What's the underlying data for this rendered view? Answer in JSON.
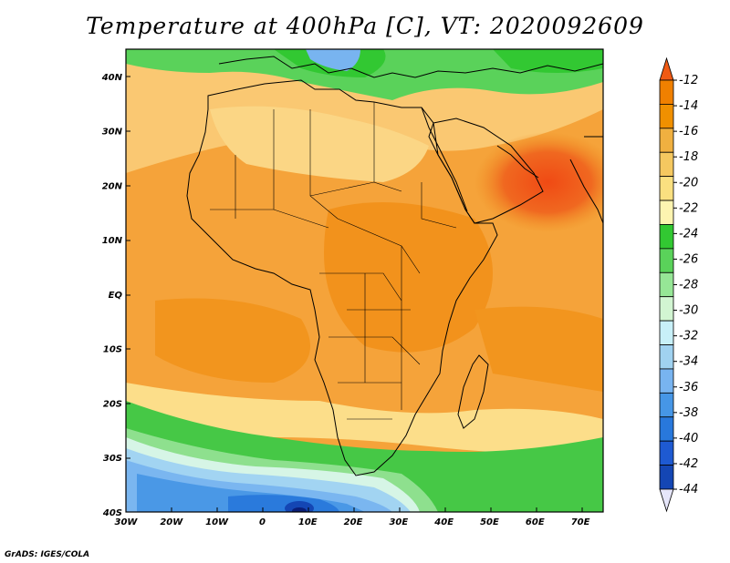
{
  "title": "Temperature at 400hPa [C], VT: 2020092609",
  "credit": "GrADS: IGES/COLA",
  "map": {
    "projection": "latlon",
    "lon_range": [
      -30,
      75
    ],
    "lat_range": [
      -40,
      45
    ],
    "lat_ticks": [
      {
        "value": 40,
        "label": "40N"
      },
      {
        "value": 30,
        "label": "30N"
      },
      {
        "value": 20,
        "label": "20N"
      },
      {
        "value": 10,
        "label": "10N"
      },
      {
        "value": 0,
        "label": "EQ"
      },
      {
        "value": -10,
        "label": "10S"
      },
      {
        "value": -20,
        "label": "20S"
      },
      {
        "value": -30,
        "label": "30S"
      },
      {
        "value": -40,
        "label": "40S"
      }
    ],
    "lon_ticks": [
      {
        "value": -30,
        "label": "30W"
      },
      {
        "value": -20,
        "label": "20W"
      },
      {
        "value": -10,
        "label": "10W"
      },
      {
        "value": 0,
        "label": "0"
      },
      {
        "value": 10,
        "label": "10E"
      },
      {
        "value": 20,
        "label": "20E"
      },
      {
        "value": 30,
        "label": "30E"
      },
      {
        "value": 40,
        "label": "40E"
      },
      {
        "value": 50,
        "label": "50E"
      },
      {
        "value": 60,
        "label": "60E"
      },
      {
        "value": 70,
        "label": "70E"
      }
    ]
  },
  "colorbar": {
    "labels": [
      "-12",
      "-14",
      "-16",
      "-18",
      "-20",
      "-22",
      "-24",
      "-26",
      "-28",
      "-30",
      "-32",
      "-34",
      "-36",
      "-38",
      "-40",
      "-42",
      "-44"
    ],
    "colors": [
      "#f0a000",
      "#f08000",
      "#f09000",
      "#f0b040",
      "#f5c860",
      "#fae080",
      "#fdf4b0",
      "#32c832",
      "#5ad25a",
      "#96e696",
      "#d2f5d2",
      "#c8f0f8",
      "#a0d2f0",
      "#78b4f0",
      "#4696e6",
      "#2878dc",
      "#1e5ad2",
      "#1446b4",
      "#0a1e78"
    ]
  }
}
